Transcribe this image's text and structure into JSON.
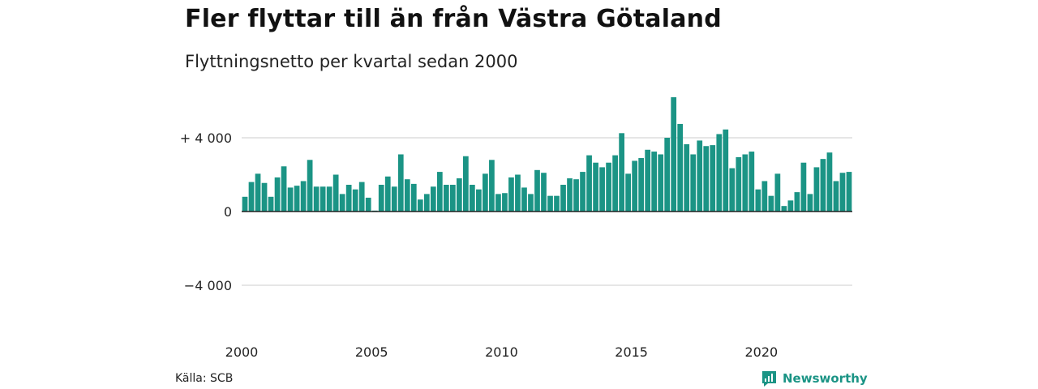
{
  "title": "Fler flyttar till än från Västra Götaland",
  "subtitle": "Flyttningsnetto per kvartal sedan 2000",
  "source": "Källa: SCB",
  "brand": {
    "name": "Newsworthy",
    "icon": "newsworthy-logo-icon"
  },
  "colors": {
    "bar": "#1b9485",
    "axis": "#222222",
    "grid": "#dddddd",
    "brand": "#1b9485"
  },
  "chart_data": {
    "type": "bar",
    "x_start": 2000,
    "periods_per_year": 4,
    "xticks": [
      2000,
      2005,
      2010,
      2015,
      2020
    ],
    "xtick_labels": [
      "2000",
      "2005",
      "2010",
      "2015",
      "2020"
    ],
    "yticks": [
      4000,
      0,
      -4000
    ],
    "ytick_labels": [
      "+ 4 000",
      "0",
      "−4 000"
    ],
    "ylim": [
      -6000,
      6500
    ],
    "grid": true,
    "values": [
      800,
      1600,
      2050,
      1550,
      800,
      1850,
      2450,
      1300,
      1400,
      1650,
      2800,
      1350,
      1350,
      1350,
      2000,
      950,
      1450,
      1200,
      1600,
      750,
      50,
      1450,
      1900,
      1350,
      3100,
      1750,
      1500,
      650,
      950,
      1350,
      2150,
      1450,
      1450,
      1800,
      3000,
      1450,
      1200,
      2050,
      2800,
      950,
      1000,
      1850,
      2000,
      1300,
      950,
      2250,
      2100,
      850,
      850,
      1450,
      1800,
      1750,
      2150,
      3050,
      2650,
      2400,
      2650,
      3050,
      4250,
      2050,
      2750,
      2900,
      3350,
      3250,
      3100,
      4000,
      6200,
      4750,
      3650,
      3100,
      3850,
      3550,
      3600,
      4200,
      4450,
      2350,
      2950,
      3100,
      3250,
      1200,
      1650,
      850,
      2050,
      300,
      600,
      1050,
      2650,
      950,
      2400,
      2850,
      3200,
      1650,
      2100,
      2150
    ]
  }
}
